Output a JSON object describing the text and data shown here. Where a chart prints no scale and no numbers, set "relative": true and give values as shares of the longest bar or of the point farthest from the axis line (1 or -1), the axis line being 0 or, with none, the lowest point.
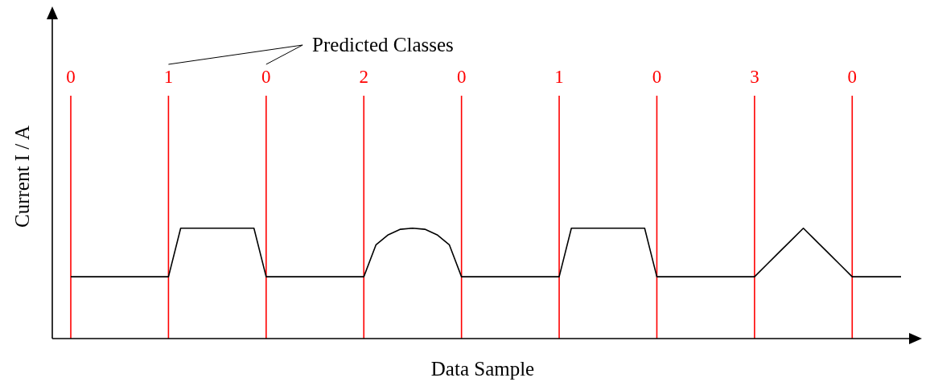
{
  "chart_data": {
    "type": "line",
    "relative": true,
    "tick_labels": "x",
    "grid": "x",
    "legend": false,
    "marker": "none",
    "line_style": "solid",
    "xlabel": "Data Sample",
    "ylabel": "Current I / A",
    "annotations": [
      "Predicted Classes"
    ],
    "categories": [
      "0",
      null,
      null,
      null,
      null,
      null,
      null,
      null,
      "1",
      null,
      null,
      null,
      null,
      null,
      null,
      null,
      "0",
      null,
      null,
      null,
      null,
      null,
      null,
      null,
      "2",
      null,
      null,
      null,
      null,
      null,
      null,
      null,
      "0",
      null,
      null,
      null,
      null,
      null,
      null,
      null,
      "1",
      null,
      null,
      null,
      null,
      null,
      null,
      null,
      "0",
      null,
      null,
      null,
      null,
      null,
      null,
      null,
      "3",
      null,
      null,
      null,
      null,
      null,
      null,
      null,
      "0",
      null,
      null,
      null,
      null
    ],
    "series": [
      {
        "color": "#000000",
        "values": [
          0.56,
          0.56,
          0.56,
          0.56,
          0.56,
          0.56,
          0.56,
          0.56,
          0.56,
          1,
          1,
          1,
          1,
          1,
          1,
          1,
          0.56,
          0.56,
          0.56,
          0.56,
          0.56,
          0.56,
          0.56,
          0.56,
          0.56,
          0.85,
          0.94,
          0.99,
          1,
          0.99,
          0.94,
          0.85,
          0.56,
          0.56,
          0.56,
          0.56,
          0.56,
          0.56,
          0.56,
          0.56,
          0.56,
          1,
          1,
          1,
          1,
          1,
          1,
          1,
          0.56,
          0.56,
          0.56,
          0.56,
          0.56,
          0.56,
          0.56,
          0.56,
          0.56,
          0.67,
          0.78,
          0.89,
          1,
          0.89,
          0.78,
          0.67,
          0.56,
          0.56,
          0.56,
          0.56,
          0.56
        ]
      }
    ]
  }
}
